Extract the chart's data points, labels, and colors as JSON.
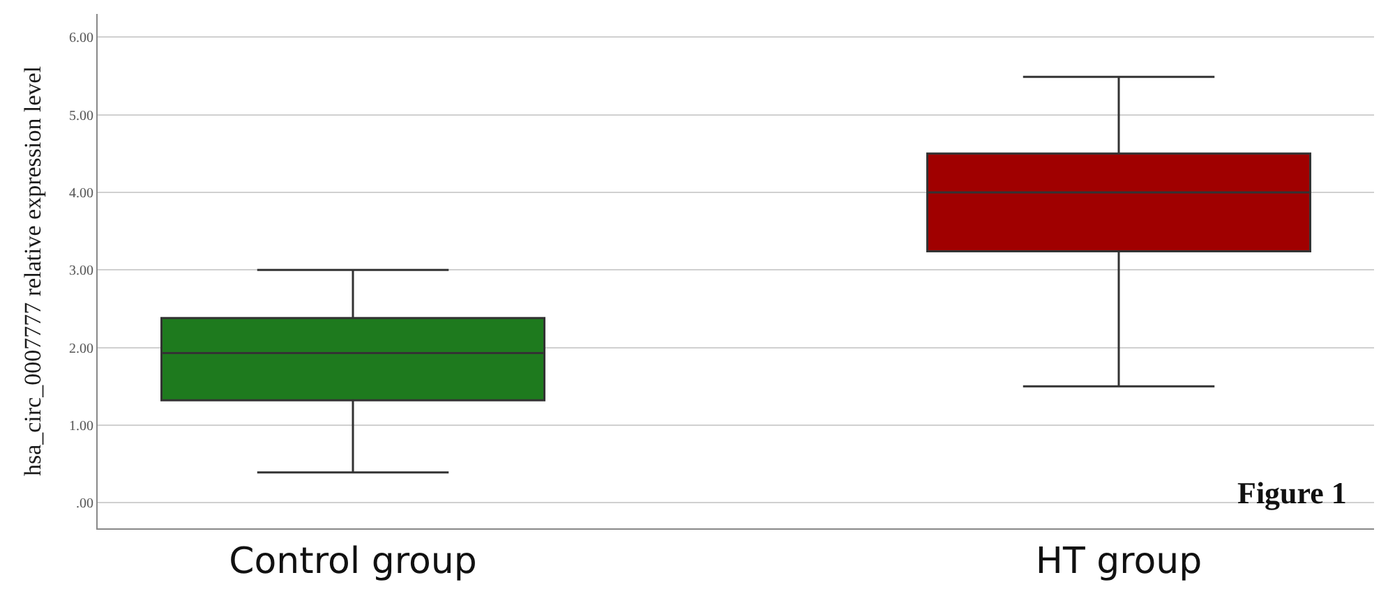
{
  "chart_data": {
    "type": "box",
    "ylabel": "hsa_circ_0007777 relative expression level",
    "categories": [
      "Control group",
      "HT group"
    ],
    "colors": [
      "#1e7a1e",
      "#a00000"
    ],
    "boxes": [
      {
        "low": 0.39,
        "q1": 1.32,
        "median": 1.93,
        "q3": 2.38,
        "high": 3.0
      },
      {
        "low": 1.5,
        "q1": 3.24,
        "median": 4.0,
        "q3": 4.5,
        "high": 5.49
      }
    ],
    "ylim": [
      -0.33,
      6.3
    ],
    "yticks": [
      {
        "value": 0,
        "label": ".00"
      },
      {
        "value": 1,
        "label": "1.00"
      },
      {
        "value": 2,
        "label": "2.00"
      },
      {
        "value": 3,
        "label": "3.00"
      },
      {
        "value": 4,
        "label": "4.00"
      },
      {
        "value": 5,
        "label": "5.00"
      },
      {
        "value": 6,
        "label": "6.00"
      }
    ],
    "grid": "y",
    "annotations": [
      "Figure 1"
    ]
  }
}
